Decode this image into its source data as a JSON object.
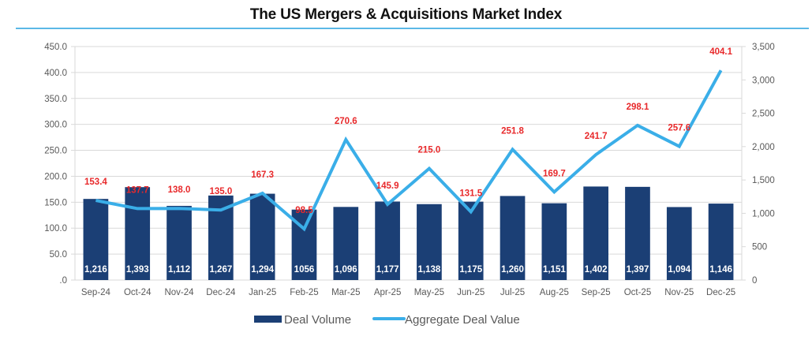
{
  "chart_data": {
    "type": "bar",
    "title": "The US Mergers & Acquisitions Market Index",
    "categories": [
      "Sep-24",
      "Oct-24",
      "Nov-24",
      "Dec-24",
      "Jan-25",
      "Feb-25",
      "Mar-25",
      "Apr-25",
      "May-25",
      "Jun-25",
      "Jul-25",
      "Aug-25",
      "Sep-25",
      "Oct-25",
      "Nov-25",
      "Dec-25"
    ],
    "series": [
      {
        "name": "Deal Volume",
        "type": "bar",
        "axis": "right",
        "color": "#1b3f75",
        "values": [
          1216,
          1393,
          1112,
          1267,
          1294,
          1056,
          1096,
          1177,
          1138,
          1175,
          1260,
          1151,
          1402,
          1397,
          1094,
          1146
        ],
        "labels": [
          "1,216",
          "1,393",
          "1,112",
          "1,267",
          "1,294",
          "1056",
          "1,096",
          "1,177",
          "1,138",
          "1,175",
          "1,260",
          "1,151",
          "1,402",
          "1,397",
          "1,094",
          "1,146"
        ]
      },
      {
        "name": "Aggregate Deal Value",
        "type": "line",
        "axis": "left",
        "color": "#3aaee8",
        "values": [
          153.4,
          137.7,
          138.0,
          135.0,
          167.3,
          98.5,
          270.6,
          145.9,
          215.0,
          131.5,
          251.8,
          169.7,
          241.7,
          298.1,
          257.6,
          404.1
        ],
        "labels": [
          "153.4",
          "137.7",
          "138.0",
          "135.0",
          "167.3",
          "98.5",
          "270.6",
          "145.9",
          "215.0",
          "131.5",
          "251.8",
          "169.7",
          "241.7",
          "298.1",
          "257.6",
          "404.1"
        ],
        "label_color": "#e8292b"
      }
    ],
    "y_left": {
      "ylim": [
        0,
        450
      ],
      "ticks": [
        ".0",
        "50.0",
        "100.0",
        "150.0",
        "200.0",
        "250.0",
        "300.0",
        "350.0",
        "400.0",
        "450.0"
      ]
    },
    "y_right": {
      "ylim": [
        0,
        3500
      ],
      "ticks": [
        "0",
        "500",
        "1,000",
        "1,500",
        "2,000",
        "2,500",
        "3,000",
        "3,500"
      ]
    },
    "xlabel": "",
    "ylabel": "",
    "grid": true,
    "legend": {
      "position": "bottom",
      "entries": [
        "Deal Volume",
        "Aggregate Deal Value"
      ]
    }
  }
}
